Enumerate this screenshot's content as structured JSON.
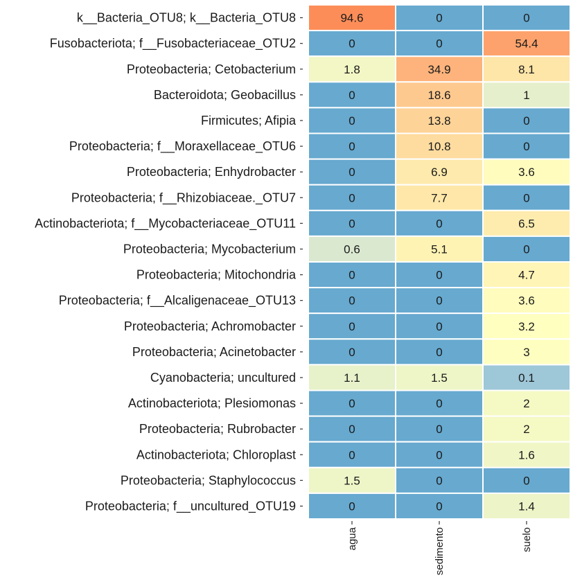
{
  "chart_data": {
    "type": "heatmap",
    "title": "",
    "xlabel": "",
    "ylabel": "",
    "x": [
      "agua",
      "sedimento",
      "suelo"
    ],
    "y": [
      "k__Bacteria_OTU8; k__Bacteria_OTU8",
      "Fusobacteriota; f__Fusobacteriaceae_OTU2",
      "Proteobacteria; Cetobacterium",
      "Bacteroidota; Geobacillus",
      "Firmicutes; Afipia",
      "Proteobacteria; f__Moraxellaceae_OTU6",
      "Proteobacteria; Enhydrobacter",
      "Proteobacteria; f__Rhizobiaceae._OTU7",
      "Actinobacteriota; f__Mycobacteriaceae_OTU11",
      "Proteobacteria; Mycobacterium",
      "Proteobacteria; Mitochondria",
      "Proteobacteria; f__Alcaligenaceae_OTU13",
      "Proteobacteria; Achromobacter",
      "Proteobacteria; Acinetobacter",
      "Cyanobacteria; uncultured",
      "Actinobacteriota; Plesiomonas",
      "Proteobacteria; Rubrobacter",
      "Actinobacteriota; Chloroplast",
      "Proteobacteria; Staphylococcus",
      "Proteobacteria; f__uncultured_OTU19"
    ],
    "values": [
      [
        94.6,
        0,
        0
      ],
      [
        0,
        0,
        54.4
      ],
      [
        1.8,
        34.9,
        8.1
      ],
      [
        0,
        18.6,
        1
      ],
      [
        0,
        13.8,
        0
      ],
      [
        0,
        10.8,
        0
      ],
      [
        0,
        6.9,
        3.6
      ],
      [
        0,
        7.7,
        0
      ],
      [
        0,
        0,
        6.5
      ],
      [
        0.6,
        5.1,
        0
      ],
      [
        0,
        0,
        4.7
      ],
      [
        0,
        0,
        3.6
      ],
      [
        0,
        0,
        3.2
      ],
      [
        0,
        0,
        3
      ],
      [
        1.1,
        1.5,
        0.1
      ],
      [
        0,
        0,
        2
      ],
      [
        0,
        0,
        2
      ],
      [
        0,
        0,
        1.6
      ],
      [
        1.5,
        0,
        0
      ],
      [
        0,
        0,
        1.4
      ]
    ],
    "colors": {
      "zero": "#67a9cf",
      "low": "#91bfdb",
      "mid": "#ffffbf",
      "high": "#fc8d59"
    },
    "grid": false,
    "legend": "none"
  }
}
